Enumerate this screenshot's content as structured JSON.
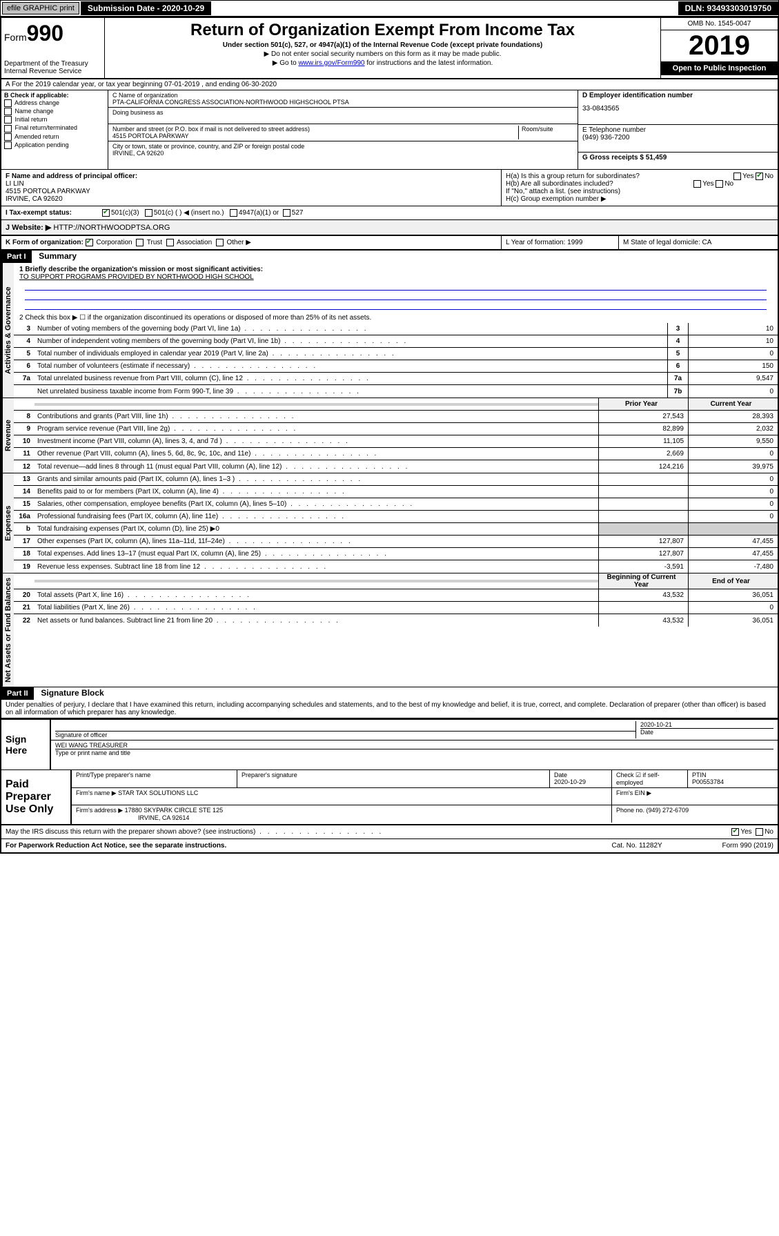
{
  "topbar": {
    "efile_label": "efile GRAPHIC print",
    "submission_label": "Submission Date - 2020-10-29",
    "dln": "DLN: 93493303019750"
  },
  "header": {
    "form_prefix": "Form",
    "form_number": "990",
    "dept": "Department of the Treasury\nInternal Revenue Service",
    "title": "Return of Organization Exempt From Income Tax",
    "subtitle1": "Under section 501(c), 527, or 4947(a)(1) of the Internal Revenue Code (except private foundations)",
    "subtitle2": "▶ Do not enter social security numbers on this form as it may be made public.",
    "subtitle3_pre": "▶ Go to ",
    "subtitle3_link": "www.irs.gov/Form990",
    "subtitle3_post": " for instructions and the latest information.",
    "omb": "OMB No. 1545-0047",
    "year": "2019",
    "open_public": "Open to Public Inspection"
  },
  "row_a": "A For the 2019 calendar year, or tax year beginning 07-01-2019   , and ending 06-30-2020",
  "block_b": {
    "header": "B Check if applicable:",
    "items": [
      "Address change",
      "Name change",
      "Initial return",
      "Final return/terminated",
      "Amended return",
      "Application pending"
    ]
  },
  "block_c": {
    "label_name": "C Name of organization",
    "org_name": "PTA-CALIFORNIA CONGRESS ASSOCIATION-NORTHWOOD HIGHSCHOOL PTSA",
    "dba_label": "Doing business as",
    "addr_label": "Number and street (or P.O. box if mail is not delivered to street address)",
    "room_label": "Room/suite",
    "addr": "4515 PORTOLA PARKWAY",
    "city_label": "City or town, state or province, country, and ZIP or foreign postal code",
    "city": "IRVINE, CA  92620"
  },
  "block_d": {
    "ein_label": "D Employer identification number",
    "ein": "33-0843565",
    "phone_label": "E Telephone number",
    "phone": "(949) 936-7200",
    "gross_label": "G Gross receipts $ 51,459"
  },
  "block_f": {
    "label": "F  Name and address of principal officer:",
    "name": "LI LIN",
    "addr": "4515 PORTOLA PARKWAY",
    "city": "IRVINE, CA  92620"
  },
  "block_h": {
    "ha": "H(a)  Is this a group return for subordinates?",
    "hb": "H(b)  Are all subordinates included?",
    "hb_note": "If \"No,\" attach a list. (see instructions)",
    "hc": "H(c)  Group exemption number ▶"
  },
  "tax_status": {
    "label": "I   Tax-exempt status:",
    "opts": [
      "501(c)(3)",
      "501(c) (   ) ◀ (insert no.)",
      "4947(a)(1) or",
      "527"
    ]
  },
  "website": {
    "label": "J   Website: ▶",
    "value": "HTTP://NORTHWOODPTSA.ORG"
  },
  "row_k": {
    "k": "K Form of organization:",
    "k_opts": [
      "Corporation",
      "Trust",
      "Association",
      "Other ▶"
    ],
    "l": "L Year of formation: 1999",
    "m": "M State of legal domicile: CA"
  },
  "part1": {
    "header": "Part I",
    "title": "Summary",
    "line1_label": "1  Briefly describe the organization's mission or most significant activities:",
    "line1_value": "TO SUPPORT PROGRAMS PROVIDED BY NORTHWOOD HIGH SCHOOL",
    "line2": "2   Check this box ▶ ☐  if the organization discontinued its operations or disposed of more than 25% of its net assets.",
    "sections": {
      "governance": "Activities & Governance",
      "revenue": "Revenue",
      "expenses": "Expenses",
      "netassets": "Net Assets or Fund Balances"
    },
    "gov_lines": [
      {
        "num": "3",
        "text": "Number of voting members of the governing body (Part VI, line 1a)",
        "box": "3",
        "val": "10"
      },
      {
        "num": "4",
        "text": "Number of independent voting members of the governing body (Part VI, line 1b)",
        "box": "4",
        "val": "10"
      },
      {
        "num": "5",
        "text": "Total number of individuals employed in calendar year 2019 (Part V, line 2a)",
        "box": "5",
        "val": "0"
      },
      {
        "num": "6",
        "text": "Total number of volunteers (estimate if necessary)",
        "box": "6",
        "val": "150"
      },
      {
        "num": "7a",
        "text": "Total unrelated business revenue from Part VIII, column (C), line 12",
        "box": "7a",
        "val": "9,547"
      },
      {
        "num": " ",
        "text": "Net unrelated business taxable income from Form 990-T, line 39",
        "box": "7b",
        "val": "0"
      }
    ],
    "col_headers": {
      "prior": "Prior Year",
      "current": "Current Year"
    },
    "rev_lines": [
      {
        "num": "8",
        "text": "Contributions and grants (Part VIII, line 1h)",
        "prior": "27,543",
        "current": "28,393"
      },
      {
        "num": "9",
        "text": "Program service revenue (Part VIII, line 2g)",
        "prior": "82,899",
        "current": "2,032"
      },
      {
        "num": "10",
        "text": "Investment income (Part VIII, column (A), lines 3, 4, and 7d )",
        "prior": "11,105",
        "current": "9,550"
      },
      {
        "num": "11",
        "text": "Other revenue (Part VIII, column (A), lines 5, 6d, 8c, 9c, 10c, and 11e)",
        "prior": "2,669",
        "current": "0"
      },
      {
        "num": "12",
        "text": "Total revenue—add lines 8 through 11 (must equal Part VIII, column (A), line 12)",
        "prior": "124,216",
        "current": "39,975"
      }
    ],
    "exp_lines": [
      {
        "num": "13",
        "text": "Grants and similar amounts paid (Part IX, column (A), lines 1–3 )",
        "prior": "",
        "current": "0"
      },
      {
        "num": "14",
        "text": "Benefits paid to or for members (Part IX, column (A), line 4)",
        "prior": "",
        "current": "0"
      },
      {
        "num": "15",
        "text": "Salaries, other compensation, employee benefits (Part IX, column (A), lines 5–10)",
        "prior": "",
        "current": "0"
      },
      {
        "num": "16a",
        "text": "Professional fundraising fees (Part IX, column (A), line 11e)",
        "prior": "",
        "current": "0"
      },
      {
        "num": "b",
        "text": "Total fundraising expenses (Part IX, column (D), line 25) ▶0",
        "prior": null,
        "current": null
      },
      {
        "num": "17",
        "text": "Other expenses (Part IX, column (A), lines 11a–11d, 11f–24e)",
        "prior": "127,807",
        "current": "47,455"
      },
      {
        "num": "18",
        "text": "Total expenses. Add lines 13–17 (must equal Part IX, column (A), line 25)",
        "prior": "127,807",
        "current": "47,455"
      },
      {
        "num": "19",
        "text": "Revenue less expenses. Subtract line 18 from line 12",
        "prior": "-3,591",
        "current": "-7,480"
      }
    ],
    "na_headers": {
      "begin": "Beginning of Current Year",
      "end": "End of Year"
    },
    "na_lines": [
      {
        "num": "20",
        "text": "Total assets (Part X, line 16)",
        "prior": "43,532",
        "current": "36,051"
      },
      {
        "num": "21",
        "text": "Total liabilities (Part X, line 26)",
        "prior": "",
        "current": "0"
      },
      {
        "num": "22",
        "text": "Net assets or fund balances. Subtract line 21 from line 20",
        "prior": "43,532",
        "current": "36,051"
      }
    ]
  },
  "part2": {
    "header": "Part II",
    "title": "Signature Block",
    "declaration": "Under penalties of perjury, I declare that I have examined this return, including accompanying schedules and statements, and to the best of my knowledge and belief, it is true, correct, and complete. Declaration of preparer (other than officer) is based on all information of which preparer has any knowledge."
  },
  "sign": {
    "label": "Sign Here",
    "sig_officer": "Signature of officer",
    "date": "2020-10-21",
    "date_label": "Date",
    "name": "WEI WANG TREASURER",
    "name_label": "Type or print name and title"
  },
  "paid": {
    "label": "Paid Preparer Use Only",
    "h_name": "Print/Type preparer's name",
    "h_sig": "Preparer's signature",
    "h_date": "Date",
    "date_val": "2020-10-29",
    "check_label": "Check ☑ if self-employed",
    "ptin_label": "PTIN",
    "ptin": "P00553784",
    "firm_name_label": "Firm's name   ▶",
    "firm_name": "STAR TAX SOLUTIONS LLC",
    "firm_ein_label": "Firm's EIN ▶",
    "firm_addr_label": "Firm's address ▶",
    "firm_addr": "17880 SKYPARK CIRCLE STE 125",
    "firm_city": "IRVINE, CA  92614",
    "phone_label": "Phone no. (949) 272-6709"
  },
  "footer": {
    "discuss": "May the IRS discuss this return with the preparer shown above? (see instructions)",
    "paperwork": "For Paperwork Reduction Act Notice, see the separate instructions.",
    "cat": "Cat. No. 11282Y",
    "form": "Form 990 (2019)"
  },
  "colors": {
    "link": "#0000cc",
    "check": "#1a7a1a",
    "shade": "#d0d0d0"
  }
}
